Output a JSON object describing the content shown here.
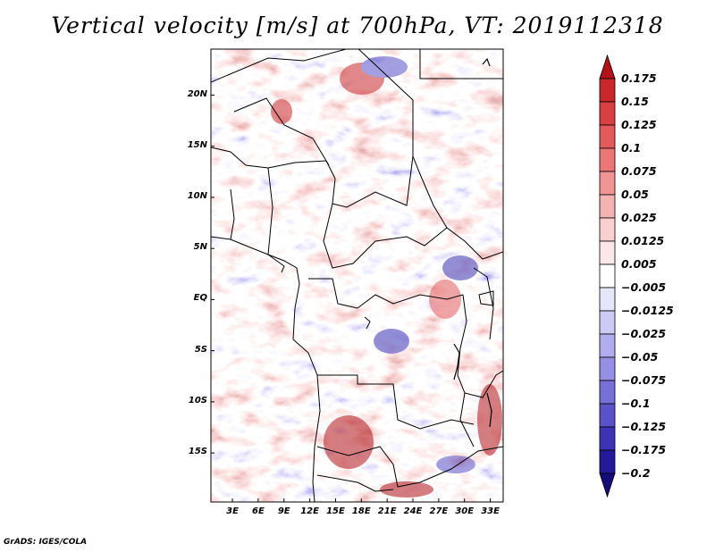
{
  "title": "Vertical velocity [m/s] at 700hPa, VT: 2019112318",
  "credit": "GrADS: IGES/COLA",
  "map": {
    "lat_labels": [
      "20N",
      "15N",
      "10N",
      "5N",
      "EQ",
      "5S",
      "10S",
      "15S"
    ],
    "lon_labels": [
      "3E",
      "6E",
      "9E",
      "12E",
      "15E",
      "18E",
      "21E",
      "24E",
      "27E",
      "30E",
      "33E"
    ],
    "lat_values": [
      20,
      15,
      10,
      5,
      0,
      -5,
      -10,
      -15
    ],
    "lon_values": [
      3,
      6,
      9,
      12,
      15,
      18,
      21,
      24,
      27,
      30,
      33
    ],
    "lon_range": [
      0.5,
      34.5
    ],
    "lat_range": [
      -19.8,
      24.5
    ],
    "field": "vertical velocity",
    "units": "m/s",
    "level": "700hPa",
    "valid_time": "2019112318"
  },
  "colorbar": {
    "labels": [
      "0.175",
      "0.15",
      "0.125",
      "0.1",
      "0.075",
      "0.05",
      "0.025",
      "0.0125",
      "0.005",
      "−0.005",
      "−0.0125",
      "−0.025",
      "−0.05",
      "−0.075",
      "−0.1",
      "−0.125",
      "−0.175",
      "−0.2"
    ],
    "colors": [
      "#b0141a",
      "#c8282c",
      "#d84044",
      "#e25a5c",
      "#ea7676",
      "#f09494",
      "#f5b2b2",
      "#f9cfcf",
      "#fce8e8",
      "#ffffff",
      "#e6e6fa",
      "#cccbf5",
      "#b0aeee",
      "#9490e4",
      "#7670d8",
      "#5a52c8",
      "#3c34b4",
      "#221a98",
      "#140c78"
    ]
  }
}
